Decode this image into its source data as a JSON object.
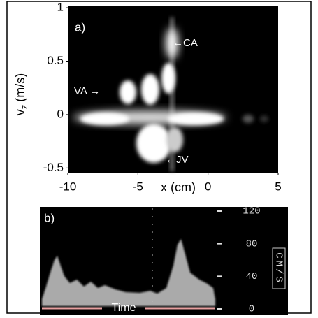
{
  "chart_data": [
    {
      "type": "image",
      "panel_label": "a)",
      "xlabel": "x (cm)",
      "ylabel": {
        "main": "v",
        "sub": "z",
        "unit": "(m/s)"
      },
      "xlim": [
        -10,
        5
      ],
      "xticks": [
        -10,
        -5,
        0,
        5
      ],
      "ylim": [
        -0.55,
        1.02
      ],
      "yticks": [
        -0.5,
        0,
        0.5,
        1
      ],
      "annotations": [
        "←CA",
        "VA →",
        "←JV"
      ]
    },
    {
      "type": "spectrogram",
      "panel_label": "b)",
      "xlabel": "Time",
      "ylabel": "CM/S",
      "ylim": [
        0,
        120
      ],
      "yticks": [
        0,
        40,
        80,
        120
      ]
    }
  ]
}
